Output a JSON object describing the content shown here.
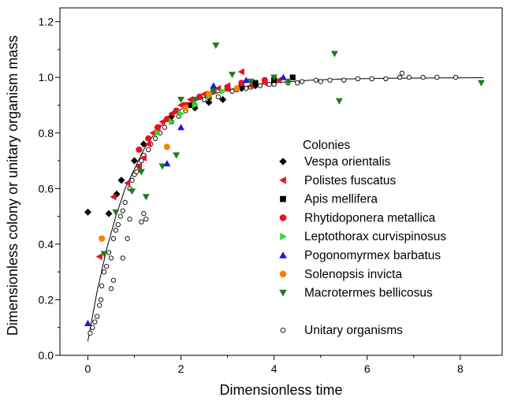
{
  "chart_data": {
    "type": "scatter",
    "xlabel": "Dimensionless time",
    "ylabel": "Dimensionless colony or unitary organism mass",
    "xlim": [
      -0.6,
      8.9
    ],
    "ylim": [
      0.0,
      1.25
    ],
    "x_ticks": [
      0,
      2,
      4,
      6,
      8
    ],
    "y_ticks": [
      0.0,
      0.2,
      0.4,
      0.6,
      0.8,
      1.0,
      1.2
    ],
    "x_tick_labels": [
      "0",
      "2",
      "4",
      "6",
      "8"
    ],
    "y_tick_labels": [
      "0.0",
      "0.2",
      "0.4",
      "0.6",
      "0.8",
      "1.0",
      "1.2"
    ],
    "legend_title": "Colonies",
    "legend_position": "center-right",
    "series": [
      {
        "name": "Vespa orientalis",
        "marker": "diamond",
        "color": "#000000",
        "points": [
          [
            0.0,
            0.515
          ],
          [
            0.45,
            0.51
          ],
          [
            0.62,
            0.58
          ],
          [
            0.72,
            0.63
          ],
          [
            1.0,
            0.7
          ],
          [
            1.2,
            0.76
          ],
          [
            1.5,
            0.82
          ],
          [
            1.8,
            0.86
          ],
          [
            2.3,
            0.89
          ],
          [
            2.6,
            0.91
          ],
          [
            2.9,
            0.92
          ],
          [
            3.3,
            0.96
          ],
          [
            3.6,
            0.97
          ]
        ]
      },
      {
        "name": "Polistes fuscatus",
        "marker": "triangle-left",
        "color": "#e8141c",
        "points": [
          [
            0.25,
            0.355
          ],
          [
            0.55,
            0.57
          ],
          [
            0.85,
            0.62
          ],
          [
            1.1,
            0.68
          ],
          [
            1.2,
            0.71
          ],
          [
            1.3,
            0.76
          ],
          [
            1.4,
            0.8
          ],
          [
            1.5,
            0.82
          ],
          [
            1.6,
            0.84
          ],
          [
            1.8,
            0.87
          ],
          [
            2.0,
            0.9
          ],
          [
            2.2,
            0.92
          ],
          [
            2.5,
            0.94
          ],
          [
            2.8,
            0.96
          ],
          [
            3.0,
            0.97
          ],
          [
            3.3,
            1.02
          ],
          [
            3.5,
            0.97
          ],
          [
            3.8,
            0.98
          ],
          [
            4.1,
            0.99
          ]
        ]
      },
      {
        "name": "Apis mellifera",
        "marker": "square",
        "color": "#000000",
        "points": [
          [
            2.2,
            0.9
          ],
          [
            2.6,
            0.93
          ],
          [
            3.0,
            0.96
          ],
          [
            3.3,
            0.97
          ],
          [
            3.6,
            0.98
          ],
          [
            4.0,
            0.99
          ],
          [
            4.4,
            1.0
          ]
        ]
      },
      {
        "name": "Rhytidoponera metallica",
        "marker": "circle",
        "color": "#e8141c",
        "points": [
          [
            1.1,
            0.74
          ],
          [
            1.3,
            0.78
          ],
          [
            1.5,
            0.82
          ],
          [
            1.7,
            0.85
          ],
          [
            1.9,
            0.88
          ],
          [
            2.1,
            0.9
          ],
          [
            2.4,
            0.93
          ],
          [
            2.7,
            0.95
          ],
          [
            3.0,
            0.96
          ],
          [
            3.3,
            0.98
          ],
          [
            3.8,
            0.99
          ]
        ]
      },
      {
        "name": "Leptothorax curvispinosus",
        "marker": "triangle-right",
        "color": "#2edc2e",
        "points": [
          [
            1.5,
            0.8
          ],
          [
            1.8,
            0.84
          ],
          [
            2.0,
            0.87
          ],
          [
            2.3,
            0.9
          ],
          [
            2.6,
            0.93
          ],
          [
            2.9,
            0.95
          ]
        ]
      },
      {
        "name": "Pogonomyrmex barbatus",
        "marker": "triangle-up",
        "color": "#1a1ad8",
        "points": [
          [
            0.0,
            0.115
          ],
          [
            1.7,
            0.69
          ],
          [
            2.0,
            0.82
          ],
          [
            2.7,
            0.97
          ],
          [
            3.4,
            0.99
          ],
          [
            4.2,
            1.0
          ]
        ]
      },
      {
        "name": "Solenopsis invicta",
        "marker": "circle",
        "color": "#f5820a",
        "points": [
          [
            0.3,
            0.42
          ],
          [
            1.7,
            0.75
          ],
          [
            2.1,
            0.89
          ],
          [
            2.6,
            0.94
          ],
          [
            3.2,
            0.96
          ]
        ]
      },
      {
        "name": "Macrotermes bellicosus",
        "marker": "triangle-down",
        "color": "#1a7f1a",
        "points": [
          [
            0.35,
            0.365
          ],
          [
            0.6,
            0.515
          ],
          [
            0.95,
            0.59
          ],
          [
            1.15,
            0.66
          ],
          [
            1.25,
            0.57
          ],
          [
            1.6,
            0.68
          ],
          [
            1.9,
            0.72
          ],
          [
            2.0,
            0.92
          ],
          [
            2.3,
            0.92
          ],
          [
            2.7,
            0.95
          ],
          [
            2.75,
            1.115
          ],
          [
            3.1,
            1.01
          ],
          [
            3.5,
            0.985
          ],
          [
            4.0,
            1.0
          ],
          [
            4.3,
            0.985
          ],
          [
            5.3,
            1.085
          ],
          [
            5.4,
            0.915
          ],
          [
            8.45,
            0.98
          ]
        ]
      },
      {
        "name": "Unitary organisms",
        "marker": "open-circle",
        "color": "#000000",
        "points": [
          [
            0.05,
            0.08
          ],
          [
            0.1,
            0.1
          ],
          [
            0.15,
            0.12
          ],
          [
            0.2,
            0.14
          ],
          [
            0.25,
            0.18
          ],
          [
            0.28,
            0.2
          ],
          [
            0.3,
            0.25
          ],
          [
            0.35,
            0.3
          ],
          [
            0.4,
            0.32
          ],
          [
            0.45,
            0.37
          ],
          [
            0.5,
            0.35
          ],
          [
            0.5,
            0.24
          ],
          [
            0.55,
            0.27
          ],
          [
            0.55,
            0.42
          ],
          [
            0.6,
            0.45
          ],
          [
            0.65,
            0.47
          ],
          [
            0.7,
            0.5
          ],
          [
            0.75,
            0.52
          ],
          [
            0.75,
            0.35
          ],
          [
            0.8,
            0.55
          ],
          [
            0.85,
            0.42
          ],
          [
            0.9,
            0.6
          ],
          [
            0.9,
            0.49
          ],
          [
            0.95,
            0.63
          ],
          [
            1.0,
            0.65
          ],
          [
            1.05,
            0.66
          ],
          [
            1.1,
            0.68
          ],
          [
            1.15,
            0.7
          ],
          [
            1.15,
            0.48
          ],
          [
            1.2,
            0.72
          ],
          [
            1.2,
            0.51
          ],
          [
            1.25,
            0.49
          ],
          [
            1.3,
            0.74
          ],
          [
            1.35,
            0.76
          ],
          [
            1.45,
            0.78
          ],
          [
            1.55,
            0.8
          ],
          [
            1.65,
            0.82
          ],
          [
            1.8,
            0.84
          ],
          [
            1.95,
            0.86
          ],
          [
            2.1,
            0.88
          ],
          [
            2.3,
            0.9
          ],
          [
            2.5,
            0.92
          ],
          [
            2.8,
            0.93
          ],
          [
            3.1,
            0.95
          ],
          [
            3.4,
            0.96
          ],
          [
            3.7,
            0.97
          ],
          [
            4.0,
            0.975
          ],
          [
            4.3,
            0.98
          ],
          [
            4.6,
            0.985
          ],
          [
            4.9,
            0.99
          ],
          [
            5.2,
            0.99
          ],
          [
            5.5,
            0.99
          ],
          [
            5.8,
            0.995
          ],
          [
            6.1,
            0.995
          ],
          [
            6.4,
            0.995
          ],
          [
            6.7,
            1.0
          ],
          [
            6.9,
            1.0
          ],
          [
            7.2,
            1.0
          ],
          [
            7.5,
            1.0
          ],
          [
            7.9,
            1.0
          ],
          [
            6.75,
            1.015
          ],
          [
            4.5,
            0.98
          ],
          [
            5.0,
            0.985
          ],
          [
            3.9,
            0.975
          ],
          [
            3.5,
            0.965
          ],
          [
            3.2,
            0.955
          ]
        ]
      }
    ],
    "curve": {
      "name": "fit",
      "x": [
        0.0,
        0.2,
        0.4,
        0.6,
        0.8,
        1.0,
        1.2,
        1.4,
        1.6,
        1.8,
        2.0,
        2.3,
        2.6,
        3.0,
        3.4,
        3.8,
        4.2,
        4.8,
        5.5,
        6.5,
        7.5,
        8.5
      ],
      "y": [
        0.05,
        0.23,
        0.38,
        0.5,
        0.6,
        0.67,
        0.74,
        0.79,
        0.83,
        0.86,
        0.885,
        0.915,
        0.935,
        0.955,
        0.968,
        0.977,
        0.983,
        0.99,
        0.994,
        0.997,
        0.998,
        0.999
      ]
    }
  }
}
